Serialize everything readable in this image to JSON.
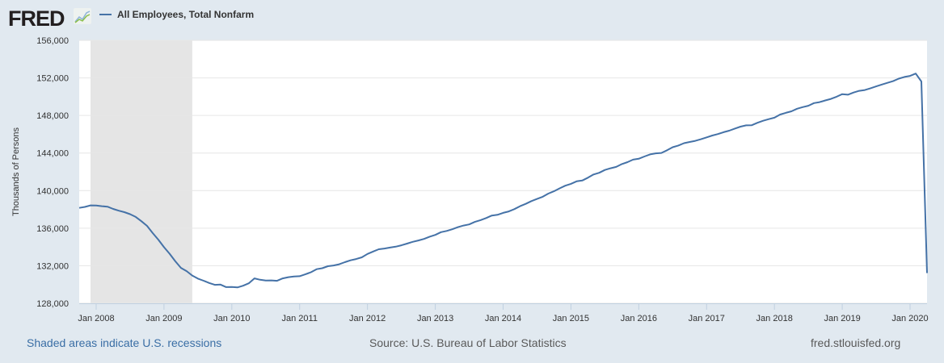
{
  "header": {
    "logo": "FRED",
    "logo_icon": "chart-line-icon",
    "legend_label": "All Employees, Total Nonfarm",
    "series_color": "#4572a7"
  },
  "footer": {
    "note": "Shaded areas indicate U.S. recessions",
    "source": "Source: U.S. Bureau of Labor Statistics",
    "site": "fred.stlouisfed.org"
  },
  "chart_data": {
    "type": "line",
    "title": "",
    "xlabel": "",
    "ylabel": "Thousands of Persons",
    "ylim": [
      128000,
      156000
    ],
    "yticks": [
      "128,000",
      "132,000",
      "136,000",
      "140,000",
      "144,000",
      "148,000",
      "152,000",
      "156,000"
    ],
    "xticks": [
      "Jan 2008",
      "Jan 2009",
      "Jan 2010",
      "Jan 2011",
      "Jan 2012",
      "Jan 2013",
      "Jan 2014",
      "Jan 2015",
      "Jan 2016",
      "Jan 2017",
      "Jan 2018",
      "Jan 2019",
      "Jan 2020"
    ],
    "xlim": [
      "2007-10",
      "2020-04"
    ],
    "grid": true,
    "legend": "top-left",
    "recession": {
      "start": "2007-12",
      "end": "2009-06",
      "color": "#e5e5e5"
    },
    "series": [
      {
        "name": "All Employees, Total Nonfarm",
        "start": "2007-10",
        "frequency": "monthly",
        "values": [
          138163,
          138263,
          138430,
          138417,
          138338,
          138291,
          138047,
          137864,
          137702,
          137487,
          137202,
          136741,
          136249,
          135477,
          134777,
          133976,
          133275,
          132475,
          131770,
          131425,
          130955,
          130625,
          130403,
          130163,
          129963,
          129996,
          129727,
          129746,
          129694,
          129875,
          130128,
          130656,
          130511,
          130431,
          130435,
          130398,
          130658,
          130786,
          130863,
          130884,
          131085,
          131310,
          131631,
          131733,
          131954,
          132026,
          132158,
          132384,
          132582,
          132716,
          132896,
          133256,
          133513,
          133754,
          133832,
          133937,
          134028,
          134179,
          134354,
          134544,
          134695,
          134853,
          135097,
          135287,
          135573,
          135708,
          135886,
          136105,
          136282,
          136400,
          136662,
          136853,
          137079,
          137342,
          137418,
          137632,
          137783,
          138035,
          138342,
          138587,
          138882,
          139113,
          139344,
          139680,
          139931,
          140243,
          140524,
          140721,
          140986,
          141070,
          141372,
          141713,
          141895,
          142201,
          142376,
          142520,
          142826,
          143030,
          143294,
          143395,
          143630,
          143859,
          143969,
          144012,
          144292,
          144621,
          144797,
          145047,
          145174,
          145300,
          145473,
          145664,
          145869,
          146019,
          146217,
          146384,
          146605,
          146814,
          146945,
          146964,
          147219,
          147436,
          147611,
          147767,
          148097,
          148279,
          148440,
          148720,
          148891,
          149035,
          149317,
          149425,
          149602,
          149764,
          149998,
          150267,
          150214,
          150441,
          150624,
          150706,
          150899,
          151093,
          151290,
          151473,
          151658,
          151919,
          152104,
          152212,
          152463,
          151620,
          131224
        ]
      }
    ]
  }
}
